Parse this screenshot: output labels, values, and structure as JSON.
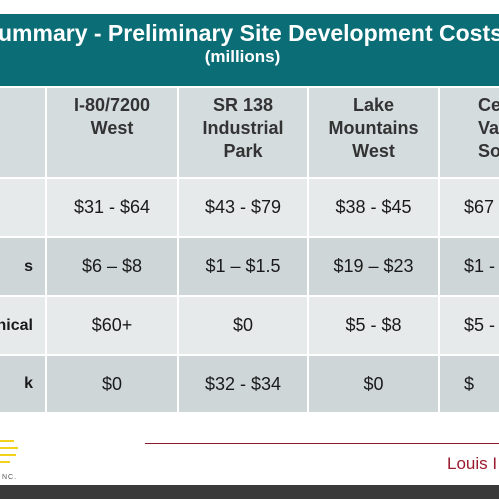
{
  "header": {
    "title": "ummary - Preliminary Site Development Costs",
    "subtitle": "(millions)"
  },
  "table": {
    "columns": [
      {
        "lines": [
          "I-80/7200",
          "West"
        ]
      },
      {
        "lines": [
          "SR 138",
          "Industrial",
          "Park"
        ]
      },
      {
        "lines": [
          "Lake",
          "Mountains",
          "West"
        ]
      },
      {
        "lines": [
          "Ce",
          "Va",
          "So"
        ]
      }
    ],
    "rows": [
      {
        "cells": [
          "$31 - $64",
          "$43 - $79",
          "$38 - $45",
          "$67"
        ]
      },
      {
        "label": "s",
        "cells": [
          "$6 – $8",
          "$1 – $1.5",
          "$19 – $23",
          "$1 -"
        ]
      },
      {
        "label": "nical",
        "cells": [
          "$60+",
          "$0",
          "$5 - $8",
          "$5 -"
        ]
      },
      {
        "label": "k",
        "cells": [
          "$0",
          "$32 - $34",
          "$0",
          "$"
        ]
      }
    ]
  },
  "footer": {
    "logo_text": "NC.",
    "brand": "Louis I"
  }
}
